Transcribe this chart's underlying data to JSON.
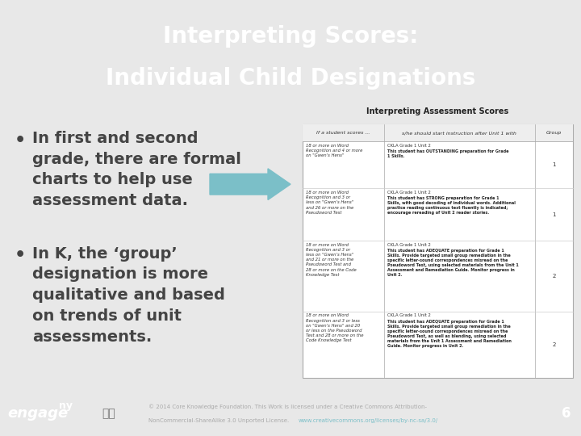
{
  "title_line1": "Interpreting Scores:",
  "title_line2": "Individual Child Designations",
  "title_bg_color": "#3a3a3a",
  "title_text_color": "#ffffff",
  "slide_bg_color": "#e8e8e8",
  "content_bg_color": "#f2f2f2",
  "bullet1_lines": [
    "In first and second",
    "grade, there are formal",
    "charts to help use",
    "assessment data."
  ],
  "bullet2_lines": [
    "In K, the ‘group’",
    "designation is more",
    "qualitative and based",
    "on trends of unit",
    "assessments."
  ],
  "bullet_text_color": "#444444",
  "bullet_fontsize": 14,
  "arrow_color": "#7bbfc8",
  "footer_bg_color": "#252525",
  "footer_text_color": "#aaaaaa",
  "footer_link_color": "#7bbfc8",
  "page_number": "6",
  "table_header_text": "Interpreting Assessment Scores",
  "table_col1": "If a student scores ...",
  "table_col2": "s/he should start instruction after Unit 1 with",
  "table_col3": "Group",
  "table_bg": "#f9f9f9",
  "table_header_bg": "#f0f0f0",
  "table_border_color": "#aaaaaa",
  "table_row_sep_color": "#cccccc",
  "row1_col1": "18 or more on Word\nRecognition and 4 or more\non \"Gwen's Hens\"",
  "row1_col2a": "CKLA Grade 1 Unit 2",
  "row1_col2b": "This student has OUTSTANDING preparation for Grade\n1 Skills.",
  "row1_col3": "1",
  "row2_col1": "18 or more on Word\nRecognition and 3 or\nless on \"Gwen's Hens\"\nand 26 or more on the\nPseudoword Test",
  "row2_col2a": "CKLA Grade 1 Unit 2",
  "row2_col2b": "This student has STRONG preparation for Grade 1\nSkills, with good decoding of individual words. Additional\npractice reading continuous text fluently is indicated;\nencourage rereading of Unit 2 reader stories.",
  "row2_col3": "1",
  "row3_col1": "18 or more on Word\nRecognition and 3 or\nless on \"Gwen's Hens\"\nand 21 or more on the\nPseudoword Test and\n28 or more on the Code\nKnowledge Test",
  "row3_col2a": "CKLA Grade 1 Unit 2",
  "row3_col2b": "This student has ADEQUATE preparation for Grade 1\nSkills. Provide targeted small group remediation in the\nspecific letter-sound correspondences misread on the\nPseudoword Test, using selected materials from the Unit 1\nAssessment and Remediation Guide. Monitor progress in\nUnit 2.",
  "row3_col3": "2",
  "row4_col1": "18 or more on Word\nRecognition and 3 or less\non \"Gwen's Hens\" and 20\nor less on the Pseudoword\nTest and 28 or more on the\nCode Knowledge Test",
  "row4_col2a": "CKLA Grade 1 Unit 2",
  "row4_col2b": "This student has ADEQUATE preparation for Grade 1\nSkills. Provide targeted small group remediation in the\nspecific letter-sound correspondences misread on the\nPseudoword Test, as well as blending, using selected\nmaterials from the Unit 1 Assessment and Remediation\nGuide. Monitor progress in Unit 2.",
  "row4_col3": "2"
}
